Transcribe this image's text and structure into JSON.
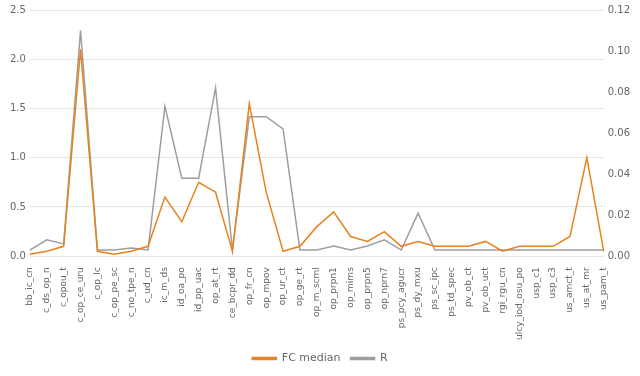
{
  "chart_data": {
    "type": "line",
    "categories": [
      "bb_ic_cn",
      "c_ds_op_n",
      "c_opou_t",
      "c_op_ce_uru",
      "c_op_lc",
      "c_op_pe_sc",
      "c_no_tpe_n",
      "c_ud_cn",
      "ic_m_ds",
      "id_oa_po",
      "id_pp_uac",
      "op_at_rt",
      "ce_bcpr_dd",
      "op_fr_cn",
      "op_mpov",
      "op_ur_ct",
      "op_ge_rt",
      "op_m_scml",
      "op_prpn1",
      "op_mims",
      "op_prpn5",
      "op_nprn7",
      "ps_pcy_agucr",
      "ps_dy_mxu",
      "ps_sc_ipc",
      "ps_td_spec",
      "pv_ob_ct",
      "pv_ob_uct",
      "rgi_rgu_cn",
      "ulcy_iod_osu_po",
      "usp_c1",
      "usp_c3",
      "us_amct_t",
      "us_at_mr",
      "us_pam_t"
    ],
    "series": [
      {
        "name": "FC median",
        "color": "#E8821E",
        "values": [
          0.02,
          0.05,
          0.1,
          2.1,
          0.05,
          0.02,
          0.05,
          0.1,
          0.6,
          0.35,
          0.75,
          0.65,
          0.05,
          1.55,
          0.65,
          0.05,
          0.1,
          0.3,
          0.45,
          0.2,
          0.15,
          0.25,
          0.1,
          0.15,
          0.1,
          0.1,
          0.1,
          0.15,
          0.05,
          0.1,
          0.1,
          0.1,
          0.2,
          1.0,
          0.05
        ]
      },
      {
        "name": "R",
        "color": "#9E9E9E",
        "axis": "y2",
        "values": [
          0.003,
          0.008,
          0.006,
          0.11,
          0.003,
          0.003,
          0.004,
          0.003,
          0.073,
          0.038,
          0.038,
          0.082,
          0.003,
          0.068,
          0.068,
          0.062,
          0.003,
          0.003,
          0.005,
          0.003,
          0.005,
          0.008,
          0.003,
          0.021,
          0.003,
          0.003,
          0.003,
          0.003,
          0.003,
          0.003,
          0.003,
          0.003,
          0.003,
          0.003,
          0.003
        ]
      }
    ],
    "ylim": [
      0,
      2.5
    ],
    "yticks": [
      {
        "value": 0,
        "label": "0.0"
      },
      {
        "value": 0.5,
        "label": "0.5"
      },
      {
        "value": 1.0,
        "label": "1.0"
      },
      {
        "value": 1.5,
        "label": "1.5"
      },
      {
        "value": 2.0,
        "label": "2.0"
      },
      {
        "value": 2.5,
        "label": "2.5"
      }
    ],
    "y2lim": [
      0,
      0.12
    ],
    "y2ticks": [
      {
        "value": 0,
        "label": "0.00"
      },
      {
        "value": 0.02,
        "label": "0.02"
      },
      {
        "value": 0.04,
        "label": "0.04"
      },
      {
        "value": 0.06,
        "label": "0.06"
      },
      {
        "value": 0.08,
        "label": "0.08"
      },
      {
        "value": 0.1,
        "label": "0.10"
      },
      {
        "value": 0.12,
        "label": "0.12"
      }
    ],
    "grid": true,
    "legend": "bottom"
  }
}
